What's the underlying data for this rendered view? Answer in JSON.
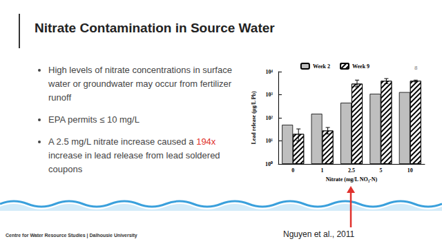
{
  "slide": {
    "title": "Nitrate Contamination in Source Water",
    "bullets": [
      [
        {
          "text": "High levels of nitrate concentrations in surface water or groundwater may occur from fertilizer runoff"
        }
      ],
      [
        {
          "text": "EPA permits ≤ 10 mg/L"
        }
      ],
      [
        {
          "text": "A 2.5 mg/L nitrate increase caused a "
        },
        {
          "text": "194x",
          "color": "#e0312c"
        },
        {
          "text": " increase in lead release from lead soldered coupons"
        }
      ]
    ],
    "footer": "Centre for Water Resource Studies | Dalhousie University",
    "citation": "Nguyen et al., 2011",
    "page_number": "8"
  },
  "chart_data": {
    "type": "bar",
    "x_label": "Nitrate (mg/L NO₃-N)",
    "y_label": "Lead release (µg/L Pb)",
    "categories": [
      "0",
      "1",
      "2.5",
      "5",
      "10"
    ],
    "series": [
      {
        "name": "Week 2",
        "color": "#bfbfbf",
        "marker": "solid",
        "values": [
          50,
          150,
          450,
          1100,
          1300
        ]
      },
      {
        "name": "Week 9",
        "color": "#ffffff",
        "marker": "hatched",
        "values": [
          20,
          28,
          3000,
          4000,
          4000
        ],
        "errors": [
          [
            10,
            33
          ],
          [
            20,
            38
          ],
          [
            2200,
            4300
          ],
          [
            3000,
            5000
          ],
          [
            3600,
            4300
          ]
        ]
      }
    ],
    "log": "y",
    "ylim": [
      1,
      10000
    ],
    "yticks": [
      {
        "value": 1,
        "label": "10⁰"
      },
      {
        "value": 10,
        "label": "10¹"
      },
      {
        "value": 100,
        "label": "10²"
      },
      {
        "value": 1000,
        "label": "10³"
      },
      {
        "value": 10000,
        "label": "10⁴"
      }
    ],
    "grid": false,
    "legend": "top"
  }
}
